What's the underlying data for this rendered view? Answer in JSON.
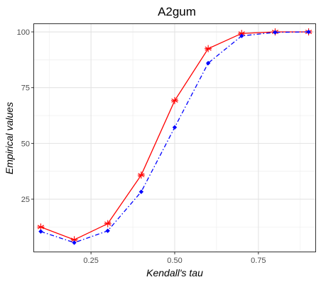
{
  "chart_data": {
    "type": "line",
    "title": "A2gum",
    "xlabel": "Kendall's tau",
    "ylabel": "Empirical values",
    "x": [
      0.1,
      0.2,
      0.3,
      0.4,
      0.5,
      0.6,
      0.7,
      0.8,
      0.9
    ],
    "xlim": [
      0.08,
      0.92
    ],
    "ylim": [
      1.5,
      103.5
    ],
    "x_ticks": [
      0.25,
      0.5,
      0.75
    ],
    "x_tick_labels": [
      "0.25",
      "0.50",
      "0.75"
    ],
    "y_ticks": [
      25,
      50,
      75,
      100
    ],
    "y_tick_labels": [
      "25",
      "50",
      "75",
      "100"
    ],
    "grid": true,
    "legend": "none",
    "series": [
      {
        "values": [
          12.5,
          6.8,
          14.0,
          35.8,
          69.2,
          92.5,
          99.3,
          100.0,
          100.0
        ],
        "color": "#ff0000",
        "line_style": "solid",
        "marker": "asterisk"
      },
      {
        "values": [
          10.5,
          5.5,
          10.8,
          28.3,
          57.2,
          86.0,
          98.2,
          99.8,
          100.0
        ],
        "color": "#0000ff",
        "line_style": "dashdot",
        "marker": "diamond"
      }
    ]
  }
}
